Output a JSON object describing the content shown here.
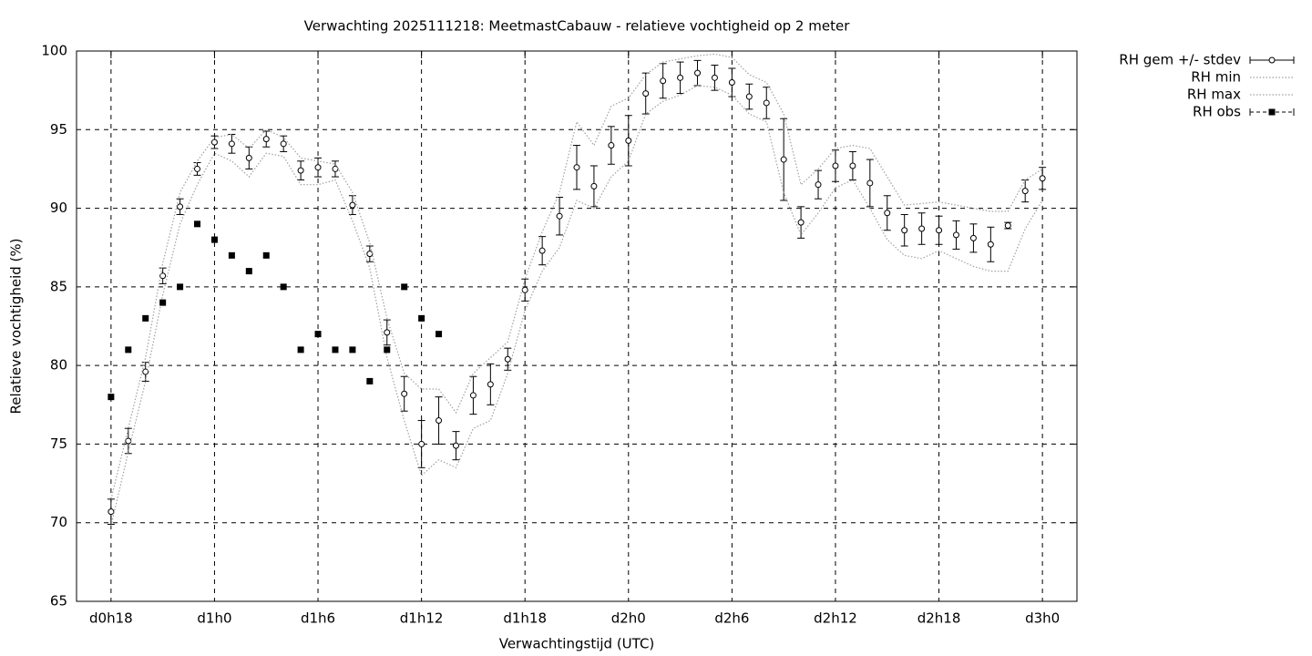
{
  "chart_data": {
    "type": "line",
    "title": "Verwachting 2025111218: MeetmastCabauw - relatieve vochtigheid op 2 meter",
    "x_label": "Verwachtingstijd (UTC)",
    "y_label": "Relatieve vochtigheid (%)",
    "x": [
      18,
      19,
      20,
      21,
      22,
      23,
      24,
      25,
      26,
      27,
      28,
      29,
      30,
      31,
      32,
      33,
      34,
      35,
      36,
      37,
      38,
      39,
      40,
      41,
      42,
      43,
      44,
      45,
      46,
      47,
      48,
      49,
      50,
      51,
      52,
      53,
      54,
      55,
      56,
      57,
      58,
      59,
      60,
      61,
      62,
      63,
      64,
      65,
      66,
      67,
      68,
      69,
      70,
      71,
      72
    ],
    "series": [
      {
        "name": "RH gem +/- stdev",
        "color": "#000000",
        "style": "errorbars",
        "values": [
          70.7,
          75.2,
          79.6,
          85.7,
          90.1,
          92.5,
          94.2,
          94.1,
          93.2,
          94.4,
          94.1,
          92.4,
          92.6,
          92.5,
          90.2,
          87.1,
          82.1,
          78.2,
          75.0,
          76.5,
          74.9,
          78.1,
          78.8,
          80.4,
          84.8,
          87.3,
          89.5,
          92.6,
          91.4,
          94.0,
          94.3,
          97.3,
          98.1,
          98.3,
          98.6,
          98.3,
          98.0,
          97.1,
          96.7,
          93.1,
          89.1,
          91.5,
          92.7,
          92.7,
          91.6,
          89.7,
          88.6,
          88.7,
          88.6,
          88.3,
          88.1,
          87.7,
          88.9,
          91.1,
          91.9
        ],
        "errors": [
          0.8,
          0.8,
          0.6,
          0.5,
          0.5,
          0.4,
          0.4,
          0.6,
          0.7,
          0.5,
          0.5,
          0.6,
          0.6,
          0.5,
          0.6,
          0.5,
          0.8,
          1.1,
          1.5,
          1.5,
          0.9,
          1.2,
          1.3,
          0.7,
          0.7,
          0.9,
          1.2,
          1.4,
          1.3,
          1.2,
          1.6,
          1.3,
          1.1,
          1.0,
          0.8,
          0.8,
          0.9,
          0.8,
          1.0,
          2.6,
          1.0,
          0.9,
          1.0,
          0.9,
          1.5,
          1.1,
          1.0,
          1.0,
          0.9,
          0.9,
          0.9,
          1.1,
          0.2,
          0.7,
          0.7
        ]
      },
      {
        "name": "RH min",
        "color": "#a0a0a0",
        "style": "dotted",
        "values": [
          69.8,
          74.5,
          79,
          84.5,
          89,
          91.5,
          93.5,
          93,
          92,
          93.5,
          93.3,
          91.5,
          91.5,
          91.8,
          89.2,
          86.2,
          80.5,
          76.5,
          73,
          74,
          73.5,
          76,
          76.5,
          79.5,
          83.5,
          86,
          87.5,
          90.5,
          90,
          92,
          93,
          96,
          96.8,
          97.2,
          97.8,
          97.7,
          97.2,
          96,
          95.5,
          91,
          88.3,
          89.7,
          91.3,
          91.8,
          90,
          88,
          87,
          86.8,
          87.3,
          86.8,
          86.3,
          86,
          86,
          88.7,
          90.5
        ]
      },
      {
        "name": "RH max",
        "color": "#a0a0a0",
        "style": "dotted",
        "values": [
          71.5,
          76,
          80.5,
          86.5,
          91,
          93,
          94.5,
          94.7,
          93.8,
          95,
          94.5,
          93.2,
          93,
          92.8,
          91,
          87.8,
          83,
          79.5,
          78.5,
          78.5,
          77,
          79.5,
          80.5,
          81.5,
          85.5,
          88.5,
          91,
          95.5,
          94,
          96.5,
          97,
          98.5,
          99.3,
          99.5,
          99.7,
          99.8,
          99.6,
          98.5,
          98,
          96,
          91.5,
          92.5,
          93.8,
          94,
          93.8,
          92,
          90.2,
          90.3,
          90.4,
          90.2,
          90,
          89.8,
          89.8,
          91.8,
          92.5
        ]
      },
      {
        "name": "RH obs",
        "color": "#000000",
        "style": "points",
        "values": [
          78,
          81,
          83,
          84,
          85,
          89,
          88,
          87,
          86,
          87,
          85,
          81,
          82,
          81,
          81,
          79,
          81,
          85,
          83,
          82,
          null,
          null,
          null,
          null,
          null,
          null,
          null,
          null,
          null,
          null,
          null,
          null,
          null,
          null,
          null,
          null,
          null,
          null,
          null,
          null,
          null,
          null,
          null,
          null,
          null,
          null,
          null,
          null,
          null,
          null,
          null,
          null,
          null,
          null,
          null
        ]
      }
    ],
    "xlim": [
      16,
      74
    ],
    "xticks": [
      {
        "value": 18,
        "label": "d0h18"
      },
      {
        "value": 24,
        "label": "d1h0"
      },
      {
        "value": 30,
        "label": "d1h6"
      },
      {
        "value": 36,
        "label": "d1h12"
      },
      {
        "value": 42,
        "label": "d1h18"
      },
      {
        "value": 48,
        "label": "d2h0"
      },
      {
        "value": 54,
        "label": "d2h6"
      },
      {
        "value": 60,
        "label": "d2h12"
      },
      {
        "value": 66,
        "label": "d2h18"
      },
      {
        "value": 72,
        "label": "d3h0"
      }
    ],
    "ylim": [
      65,
      100
    ],
    "yticks": [
      65,
      70,
      75,
      80,
      85,
      90,
      95,
      100
    ],
    "grid": true,
    "legend": "outside-right"
  }
}
